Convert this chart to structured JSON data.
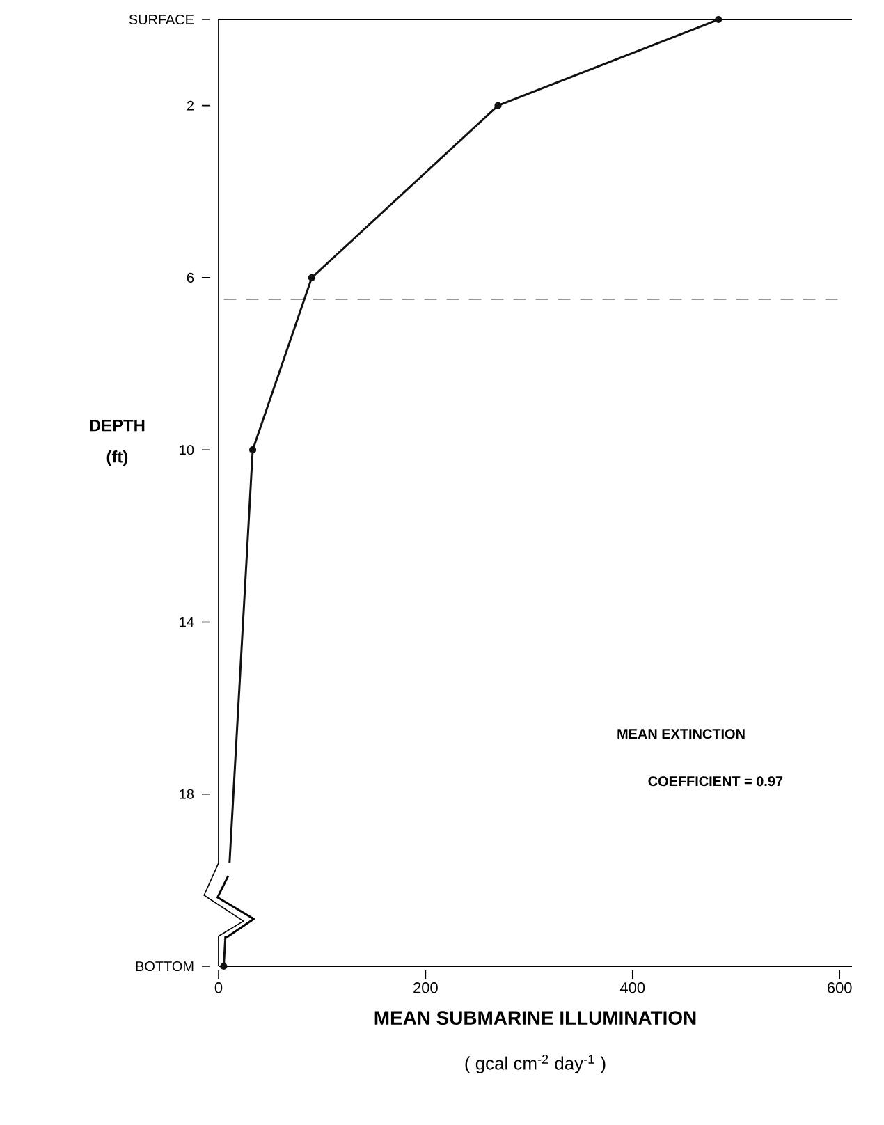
{
  "chart_data": {
    "type": "line",
    "xlabel": "MEAN SUBMARINE ILLUMINATION",
    "ylabel": "DEPTH",
    "series": [
      {
        "color": "#111111",
        "x": [
          483,
          270,
          90,
          33,
          5
        ],
        "values": [
          0,
          2,
          6,
          10,
          22
        ]
      }
    ],
    "xlim": [
      0,
      612
    ],
    "xticks": [
      0,
      200,
      400,
      600
    ],
    "ylim": [
      22,
      0
    ],
    "yticks": [
      {
        "value": 0,
        "label": "SURFACE"
      },
      2,
      6,
      10,
      14,
      18,
      {
        "value": 22,
        "label": "BOTTOM"
      }
    ],
    "ref_lines": [
      {
        "axis": "y",
        "value": 6.5,
        "line_style": "dashed",
        "color": "#333333"
      }
    ],
    "annotations": [
      "(ft)",
      "( gcal cm$^{-2}$ day$^{-1}$ )",
      "MEAN EXTINCTION",
      "COEFFICIENT = 0.97"
    ],
    "marker": "circle",
    "line_style": "solid",
    "grid": false
  }
}
